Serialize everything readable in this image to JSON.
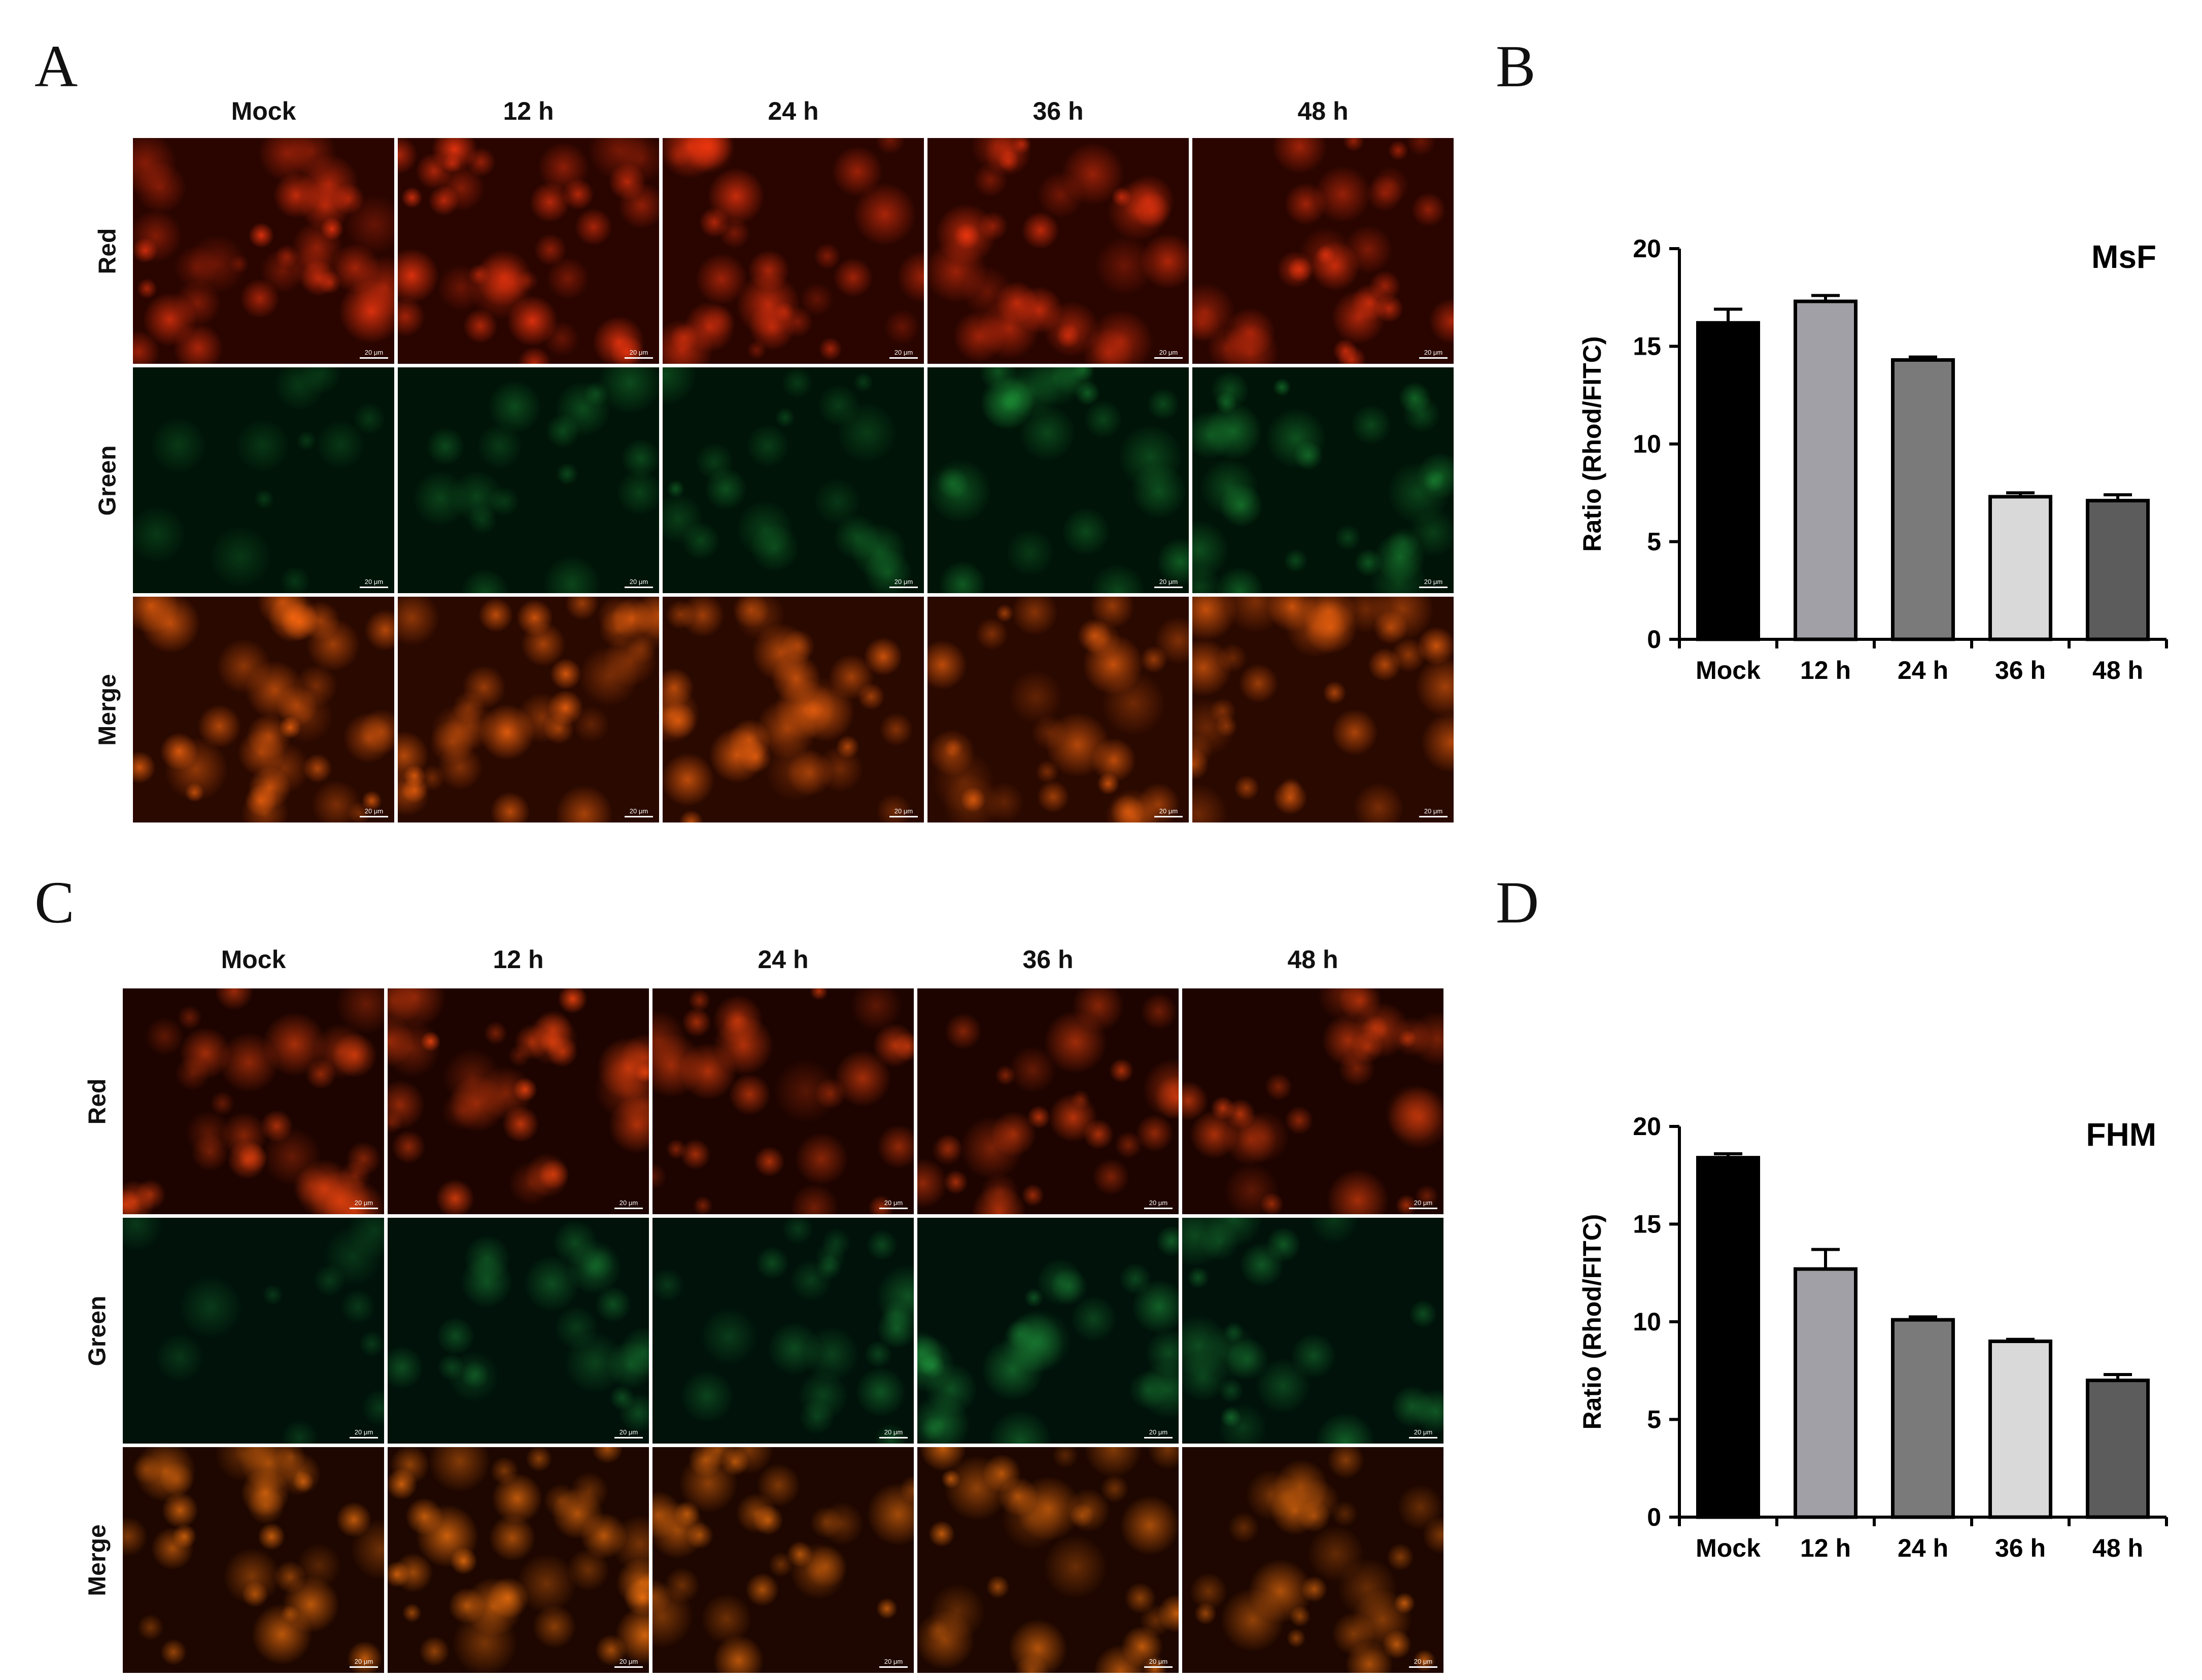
{
  "panels": [
    {
      "letter": "A",
      "columns": [
        "Mock",
        "12 h",
        "24 h",
        "36 h",
        "48 h"
      ],
      "rows": [
        "Red",
        "Green",
        "Merge"
      ],
      "scale_label": "20 μm",
      "channels": {
        "Red": {
          "base": "#2a0500",
          "spot": "#ff3a10",
          "intensity": [
            0.95,
            1.0,
            0.8,
            0.75,
            0.75
          ]
        },
        "Green": {
          "base": "#001408",
          "spot": "#1f9a3a",
          "intensity": [
            0.05,
            0.25,
            0.35,
            0.55,
            0.7
          ]
        },
        "Merge": {
          "base": "#2a0900",
          "spot": "#ff6a10",
          "intensity": [
            0.95,
            1.0,
            0.85,
            0.8,
            0.85
          ]
        }
      }
    },
    {
      "letter": "C",
      "columns": [
        "Mock",
        "12 h",
        "24 h",
        "36 h",
        "48 h"
      ],
      "rows": [
        "Red",
        "Green",
        "Merge"
      ],
      "scale_label": "20 μm",
      "channels": {
        "Red": {
          "base": "#1e0400",
          "spot": "#ff4a10",
          "intensity": [
            0.8,
            1.0,
            0.7,
            0.7,
            0.7
          ]
        },
        "Green": {
          "base": "#00120a",
          "spot": "#22a040",
          "intensity": [
            0.05,
            0.35,
            0.45,
            0.55,
            0.5
          ]
        },
        "Merge": {
          "base": "#1e0700",
          "spot": "#ff7a10",
          "intensity": [
            0.8,
            1.0,
            0.75,
            0.8,
            0.75
          ]
        }
      }
    }
  ],
  "chart_data": [
    {
      "letter": "B",
      "type": "bar",
      "title": "MsF",
      "ylabel": "Ratio (Rhod/FITC)",
      "categories": [
        "Mock",
        "12 h",
        "24 h",
        "36 h",
        "48 h"
      ],
      "values": [
        16.2,
        17.3,
        14.3,
        7.3,
        7.1
      ],
      "errors": [
        0.7,
        0.3,
        0.15,
        0.2,
        0.3
      ],
      "colors": [
        "#000000",
        "#a0a0a6",
        "#7a7a7a",
        "#d9d9d9",
        "#5c5c5c"
      ],
      "ylim": [
        0,
        20
      ],
      "yticks": [
        0,
        5,
        10,
        15,
        20
      ]
    },
    {
      "letter": "D",
      "type": "bar",
      "title": "FHM",
      "ylabel": "Ratio (Rhod/FITC)",
      "categories": [
        "Mock",
        "12 h",
        "24 h",
        "36 h",
        "48 h"
      ],
      "values": [
        18.4,
        12.7,
        10.1,
        9.0,
        7.0
      ],
      "errors": [
        0.2,
        1.0,
        0.15,
        0.1,
        0.3
      ],
      "colors": [
        "#000000",
        "#a0a0a6",
        "#7a7a7a",
        "#d9d9d9",
        "#5c5c5c"
      ],
      "ylim": [
        0,
        20
      ],
      "yticks": [
        0,
        5,
        10,
        15,
        20
      ]
    }
  ]
}
